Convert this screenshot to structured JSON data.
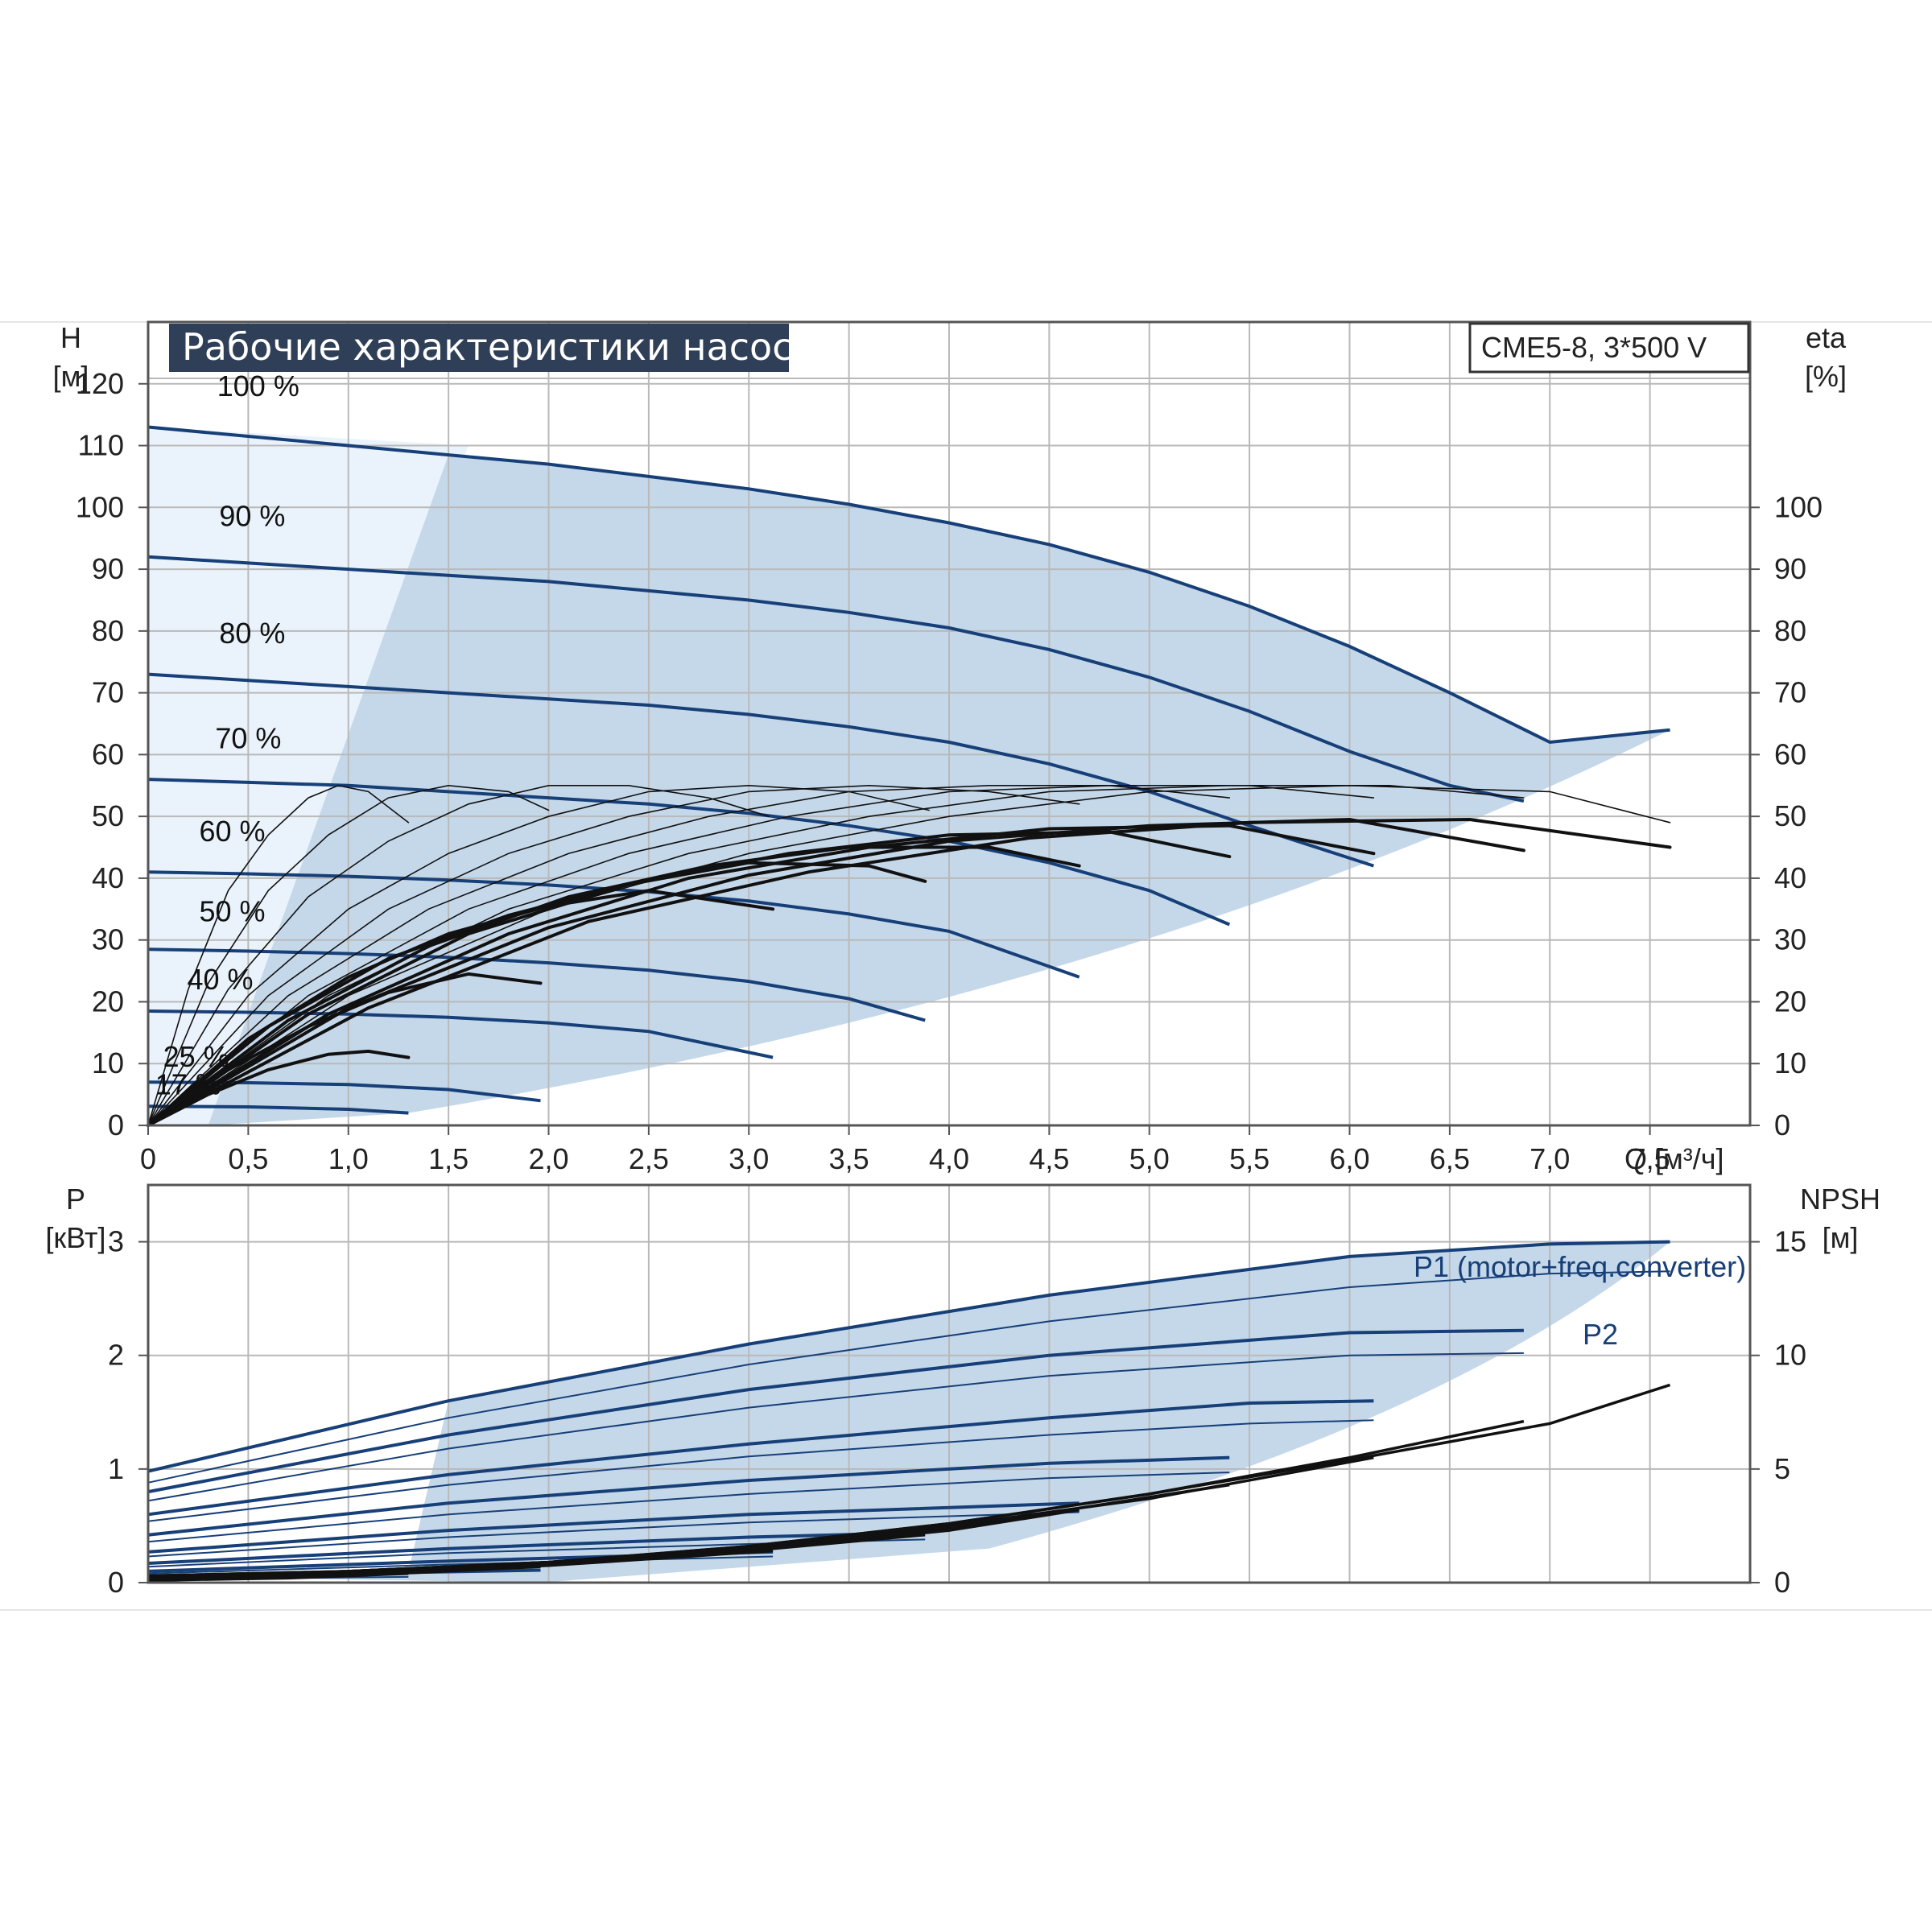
{
  "chart_title": "Рабочие характеристики насоса",
  "model": "CME5-8, 3*500 V",
  "colors": {
    "curve": "#173f78",
    "efficiency": "#111111",
    "envelope": "#c5d8ea",
    "envelope_light": "#eaf3fb",
    "grid": "#b9b9b9",
    "title_bg": "#2f3f57"
  },
  "chart_data": [
    {
      "type": "line",
      "title": "Рабочие характеристики насоса",
      "xlabel": "Q [м³/ч]",
      "ylabel": "H [м]",
      "ylabel_name": "H",
      "ylabel_unit": "[м]",
      "y2label_name": "eta",
      "y2label_unit": "[%]",
      "xlim": [
        0,
        8.0
      ],
      "ylim": [
        0,
        130
      ],
      "y2lim": [
        0,
        130
      ],
      "x_ticks": [
        "0",
        "0,5",
        "1,0",
        "1,5",
        "2,0",
        "2,5",
        "3,0",
        "3,5",
        "4,0",
        "4,5",
        "5,0",
        "5,5",
        "6,0",
        "6,5",
        "7,0",
        "7,5"
      ],
      "x_tick_values": [
        0,
        0.5,
        1.0,
        1.5,
        2.0,
        2.5,
        3.0,
        3.5,
        4.0,
        4.5,
        5.0,
        5.5,
        6.0,
        6.5,
        7.0,
        7.5
      ],
      "y_ticks": [
        0,
        10,
        20,
        30,
        40,
        50,
        60,
        70,
        80,
        90,
        100,
        110,
        120
      ],
      "y2_ticks": [
        0,
        10,
        20,
        30,
        40,
        50,
        60,
        70,
        80,
        90,
        100
      ],
      "grid": true,
      "series": [
        {
          "name": "100 %",
          "x": [
            0,
            0.5,
            1.0,
            1.5,
            2.0,
            2.5,
            3.0,
            3.5,
            4.0,
            4.5,
            5.0,
            5.5,
            6.0,
            6.5,
            7.0,
            7.6
          ],
          "y": [
            113,
            111.5,
            110,
            108.5,
            107,
            105,
            103,
            100.5,
            97.5,
            94,
            89.5,
            84,
            77.5,
            70,
            62,
            64
          ]
        },
        {
          "name": "90 %",
          "x": [
            0,
            0.5,
            1.0,
            1.5,
            2.0,
            2.5,
            3.0,
            3.5,
            4.0,
            4.5,
            5.0,
            5.5,
            6.0,
            6.5,
            6.87
          ],
          "y": [
            92,
            91,
            90,
            89,
            88,
            86.5,
            85,
            83,
            80.5,
            77,
            72.5,
            67,
            60.5,
            55,
            52.5
          ]
        },
        {
          "name": "80 %",
          "x": [
            0,
            0.5,
            1.0,
            1.5,
            2.0,
            2.5,
            3.0,
            3.5,
            4.0,
            4.5,
            5.0,
            5.5,
            6.12
          ],
          "y": [
            73,
            72,
            71,
            70,
            69,
            68,
            66.5,
            64.5,
            62,
            58.5,
            54,
            48.5,
            42
          ]
        },
        {
          "name": "70 %",
          "x": [
            0,
            0.5,
            1.0,
            1.5,
            2.0,
            2.5,
            3.0,
            3.5,
            4.0,
            4.5,
            5.0,
            5.4
          ],
          "y": [
            56,
            55.5,
            55,
            54,
            53,
            52,
            50.5,
            48.5,
            46,
            42.5,
            38,
            32.5
          ]
        },
        {
          "name": "60 %",
          "x": [
            0,
            0.5,
            1.0,
            1.5,
            2.0,
            2.5,
            3.0,
            3.5,
            4.0,
            4.65
          ],
          "y": [
            41,
            40.7,
            40.3,
            39.7,
            38.9,
            37.8,
            36.3,
            34.2,
            31.4,
            24
          ]
        },
        {
          "name": "50 %",
          "x": [
            0,
            0.5,
            1.0,
            1.5,
            2.0,
            2.5,
            3.0,
            3.5,
            3.88
          ],
          "y": [
            28.5,
            28.2,
            27.8,
            27.2,
            26.3,
            25.1,
            23.3,
            20.5,
            17
          ]
        },
        {
          "name": "40 %",
          "x": [
            0,
            0.5,
            1.0,
            1.5,
            2.0,
            2.5,
            3.12
          ],
          "y": [
            18.5,
            18.3,
            18,
            17.5,
            16.6,
            15.2,
            11
          ]
        },
        {
          "name": "25 %",
          "x": [
            0,
            0.5,
            1.0,
            1.5,
            1.96
          ],
          "y": [
            7,
            6.9,
            6.6,
            5.8,
            4
          ]
        },
        {
          "name": "17 %",
          "x": [
            0,
            0.5,
            1.0,
            1.3
          ],
          "y": [
            3.1,
            3,
            2.6,
            2
          ]
        }
      ],
      "efficiency_series": [
        {
          "x": [
            0,
            0.2,
            0.4,
            0.6,
            0.8,
            0.95,
            1.1,
            1.3
          ],
          "y": [
            0,
            22,
            38,
            47,
            53,
            55,
            54,
            49
          ]
        },
        {
          "x": [
            0,
            0.3,
            0.6,
            0.9,
            1.2,
            1.5,
            1.8,
            2.0
          ],
          "y": [
            0,
            23,
            38,
            47,
            53,
            55,
            54,
            51
          ]
        },
        {
          "x": [
            0,
            0.4,
            0.8,
            1.2,
            1.6,
            2.0,
            2.4,
            2.8,
            3.1
          ],
          "y": [
            0,
            22,
            37,
            46,
            52,
            55,
            55,
            53,
            50
          ]
        },
        {
          "x": [
            0,
            0.5,
            1.0,
            1.5,
            2.0,
            2.5,
            3.0,
            3.5,
            3.9
          ],
          "y": [
            0,
            21,
            35,
            44,
            50,
            54,
            55,
            54,
            51
          ]
        },
        {
          "x": [
            0,
            0.6,
            1.2,
            1.8,
            2.4,
            3.0,
            3.6,
            4.2,
            4.65
          ],
          "y": [
            0,
            21,
            35,
            44,
            50,
            54,
            55,
            54,
            52
          ]
        },
        {
          "x": [
            0,
            0.7,
            1.4,
            2.1,
            2.8,
            3.5,
            4.2,
            4.8,
            5.4
          ],
          "y": [
            0,
            21,
            35,
            44,
            50,
            54,
            55,
            55,
            53
          ]
        },
        {
          "x": [
            0,
            0.8,
            1.6,
            2.4,
            3.2,
            4.0,
            4.8,
            5.5,
            6.12
          ],
          "y": [
            0,
            21,
            35,
            44,
            50,
            54,
            55,
            55,
            53
          ]
        },
        {
          "x": [
            0,
            0.9,
            1.8,
            2.7,
            3.6,
            4.5,
            5.4,
            6.2,
            6.87
          ],
          "y": [
            0,
            21,
            35,
            44,
            50,
            54,
            55,
            55,
            53
          ]
        },
        {
          "x": [
            0,
            1.0,
            2.0,
            3.0,
            4.0,
            5.0,
            6.0,
            7.0,
            7.6
          ],
          "y": [
            0,
            21,
            35,
            44,
            50,
            54,
            55,
            54,
            49
          ]
        },
        {
          "x": [
            0,
            0.3,
            0.6,
            0.9,
            1.1,
            1.3
          ],
          "y": [
            0,
            5,
            9,
            11.5,
            12,
            11
          ]
        },
        {
          "x": [
            0,
            0.4,
            0.8,
            1.2,
            1.6,
            1.96
          ],
          "y": [
            0,
            9,
            16,
            21.5,
            24.5,
            23
          ]
        },
        {
          "x": [
            0,
            0.5,
            1.0,
            1.5,
            2.0,
            2.5,
            3.12
          ],
          "y": [
            0,
            14,
            24,
            31,
            35.5,
            38,
            35
          ]
        },
        {
          "x": [
            0,
            0.6,
            1.2,
            1.8,
            2.4,
            3.0,
            3.6,
            3.88
          ],
          "y": [
            0,
            16,
            27,
            34,
            39,
            42.5,
            42,
            39.5
          ]
        },
        {
          "x": [
            0,
            0.7,
            1.4,
            2.1,
            2.8,
            3.5,
            4.2,
            4.65
          ],
          "y": [
            0,
            17,
            29,
            37,
            42,
            45,
            45,
            42
          ]
        },
        {
          "x": [
            0,
            0.8,
            1.6,
            2.4,
            3.2,
            4.0,
            4.8,
            5.4
          ],
          "y": [
            0,
            18,
            31,
            39,
            44,
            47,
            47.5,
            43.5
          ]
        },
        {
          "x": [
            0,
            0.9,
            1.8,
            2.7,
            3.6,
            4.5,
            5.4,
            6.12
          ],
          "y": [
            0,
            18,
            31,
            40,
            45,
            48,
            48.5,
            44
          ]
        },
        {
          "x": [
            0,
            1.0,
            2.0,
            3.0,
            4.0,
            5.0,
            6.0,
            6.87
          ],
          "y": [
            0,
            19,
            32,
            40.5,
            46,
            48.5,
            49.5,
            44.5
          ]
        },
        {
          "x": [
            0,
            1.1,
            2.2,
            3.3,
            4.4,
            5.5,
            6.6,
            7.6
          ],
          "y": [
            0,
            19,
            33,
            41,
            46.5,
            49,
            49.5,
            45
          ]
        }
      ]
    },
    {
      "type": "line",
      "xlabel": "",
      "ylabel": "P [кВт]",
      "ylabel_name": "P",
      "ylabel_unit": "[кВт]",
      "y2label_name": "NPSH",
      "y2label_unit": "[м]",
      "xlim": [
        0,
        8.0
      ],
      "ylim": [
        0,
        3.5
      ],
      "y2lim": [
        0,
        17.5
      ],
      "y_ticks": [
        0,
        1,
        2,
        3
      ],
      "y2_ticks": [
        0,
        5,
        10,
        15
      ],
      "grid": true,
      "series": [
        {
          "name": "P1 (motor+freq.converter)",
          "x": [
            0,
            1.5,
            3.0,
            4.5,
            6.0,
            7.0,
            7.6
          ],
          "y": [
            0.98,
            1.6,
            2.1,
            2.53,
            2.87,
            2.98,
            3.0
          ]
        },
        {
          "name": "P2",
          "x": [
            0,
            1.5,
            3.0,
            4.5,
            6.0,
            7.0,
            7.6
          ],
          "y": [
            0.88,
            1.45,
            1.92,
            2.3,
            2.6,
            2.72,
            2.74
          ]
        },
        {
          "name": "",
          "x": [
            0,
            1.5,
            3.0,
            4.5,
            6.0,
            6.87
          ],
          "y": [
            0.8,
            1.3,
            1.7,
            2.0,
            2.2,
            2.22
          ]
        },
        {
          "name": "",
          "x": [
            0,
            1.5,
            3.0,
            4.5,
            6.0,
            6.87
          ],
          "y": [
            0.72,
            1.18,
            1.54,
            1.82,
            2.0,
            2.02
          ]
        },
        {
          "name": "",
          "x": [
            0,
            1.5,
            3.0,
            4.5,
            5.5,
            6.12
          ],
          "y": [
            0.6,
            0.95,
            1.22,
            1.45,
            1.58,
            1.6
          ]
        },
        {
          "name": "",
          "x": [
            0,
            1.5,
            3.0,
            4.5,
            5.5,
            6.12
          ],
          "y": [
            0.54,
            0.86,
            1.11,
            1.3,
            1.4,
            1.43
          ]
        },
        {
          "name": "",
          "x": [
            0,
            1.5,
            3.0,
            4.5,
            5.4
          ],
          "y": [
            0.42,
            0.7,
            0.9,
            1.05,
            1.1
          ]
        },
        {
          "name": "",
          "x": [
            0,
            1.5,
            3.0,
            4.5,
            5.4
          ],
          "y": [
            0.36,
            0.6,
            0.78,
            0.92,
            0.97
          ]
        },
        {
          "name": "",
          "x": [
            0,
            1.5,
            3.0,
            4.65
          ],
          "y": [
            0.27,
            0.46,
            0.6,
            0.7
          ]
        },
        {
          "name": "",
          "x": [
            0,
            1.5,
            3.0,
            4.65
          ],
          "y": [
            0.23,
            0.4,
            0.53,
            0.62
          ]
        },
        {
          "name": "",
          "x": [
            0,
            1.5,
            3.0,
            3.88
          ],
          "y": [
            0.17,
            0.3,
            0.4,
            0.44
          ]
        },
        {
          "name": "",
          "x": [
            0,
            1.5,
            3.0,
            3.88
          ],
          "y": [
            0.14,
            0.26,
            0.34,
            0.38
          ]
        },
        {
          "name": "",
          "x": [
            0,
            1.5,
            3.12
          ],
          "y": [
            0.1,
            0.19,
            0.27
          ]
        },
        {
          "name": "",
          "x": [
            0,
            1.5,
            3.12
          ],
          "y": [
            0.08,
            0.16,
            0.23
          ]
        },
        {
          "name": "",
          "x": [
            0,
            1.0,
            1.96
          ],
          "y": [
            0.05,
            0.08,
            0.11
          ]
        },
        {
          "name": "",
          "x": [
            0,
            0.7,
            1.3
          ],
          "y": [
            0.03,
            0.04,
            0.05
          ]
        }
      ],
      "npsh_series": [
        {
          "x": [
            0,
            1.0,
            2.0,
            3.0,
            4.0,
            5.0,
            6.0,
            7.0,
            7.6
          ],
          "y": [
            0.3,
            0.5,
            0.9,
            1.6,
            2.6,
            3.9,
            5.4,
            7.0,
            8.7
          ]
        },
        {
          "x": [
            0,
            1.0,
            2.0,
            3.0,
            4.0,
            5.0,
            6.0,
            6.87
          ],
          "y": [
            0.3,
            0.5,
            0.9,
            1.6,
            2.6,
            3.9,
            5.5,
            7.1
          ]
        },
        {
          "x": [
            0,
            1.0,
            2.0,
            3.0,
            4.0,
            5.0,
            6.12
          ],
          "y": [
            0.25,
            0.5,
            0.9,
            1.5,
            2.5,
            3.7,
            5.5
          ]
        },
        {
          "x": [
            0,
            1.0,
            2.0,
            3.0,
            4.0,
            5.4
          ],
          "y": [
            0.2,
            0.45,
            0.85,
            1.5,
            2.4,
            4.3
          ]
        },
        {
          "x": [
            0,
            1.0,
            2.0,
            3.0,
            4.0,
            4.65
          ],
          "y": [
            0.2,
            0.4,
            0.8,
            1.4,
            2.3,
            3.2
          ]
        },
        {
          "x": [
            0,
            1.0,
            2.0,
            3.0,
            3.88
          ],
          "y": [
            0.15,
            0.4,
            0.8,
            1.4,
            2.1
          ]
        },
        {
          "x": [
            0,
            1.0,
            2.0,
            3.12
          ],
          "y": [
            0.15,
            0.35,
            0.75,
            1.4
          ]
        },
        {
          "x": [
            0,
            1.0,
            1.96
          ],
          "y": [
            0.1,
            0.3,
            0.7
          ]
        },
        {
          "x": [
            0,
            0.7,
            1.3
          ],
          "y": [
            0.1,
            0.2,
            0.4
          ]
        }
      ]
    }
  ]
}
